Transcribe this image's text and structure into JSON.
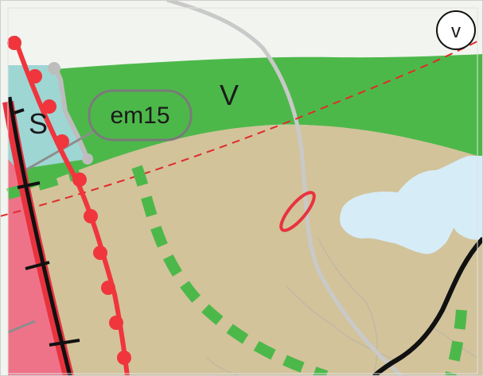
{
  "map": {
    "labels": {
      "zone_s": "S",
      "zone_v": "V",
      "zone_v_small": "v",
      "em15": "em15"
    },
    "colors": {
      "background_top": "#f1f4ef",
      "green_zone": "#4db84a",
      "tan_area": "#d2c39b",
      "water": "#d6ecf7",
      "teal_zone": "#9ed6d4",
      "pink_zone": "#ee7388",
      "rail_red": "#e8333f",
      "rail_black": "#111111",
      "dot_red": "#f0353d",
      "road_grey": "#c9c9c9",
      "path_grey": "#b9b4a4",
      "label_border": "#7a7a7a",
      "frame": "#cfcfcf"
    }
  }
}
